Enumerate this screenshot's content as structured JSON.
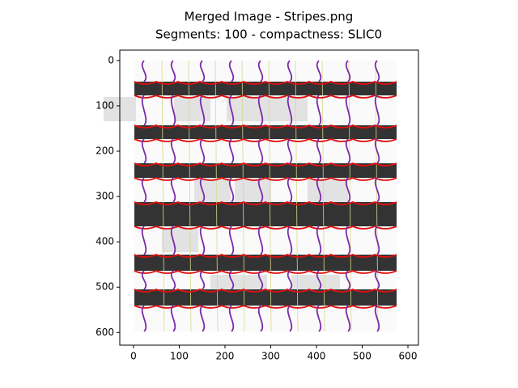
{
  "chart_data": {
    "type": "image",
    "title": "Merged Image - Stripes.png",
    "subtitle": "Segments: 100 - compactness: SLIC0",
    "xlim": [
      -30,
      623
    ],
    "ylim": [
      628,
      -23
    ],
    "xticks": [
      0,
      100,
      200,
      300,
      400,
      500,
      600
    ],
    "yticks": [
      0,
      100,
      200,
      300,
      400,
      500,
      600
    ]
  }
}
